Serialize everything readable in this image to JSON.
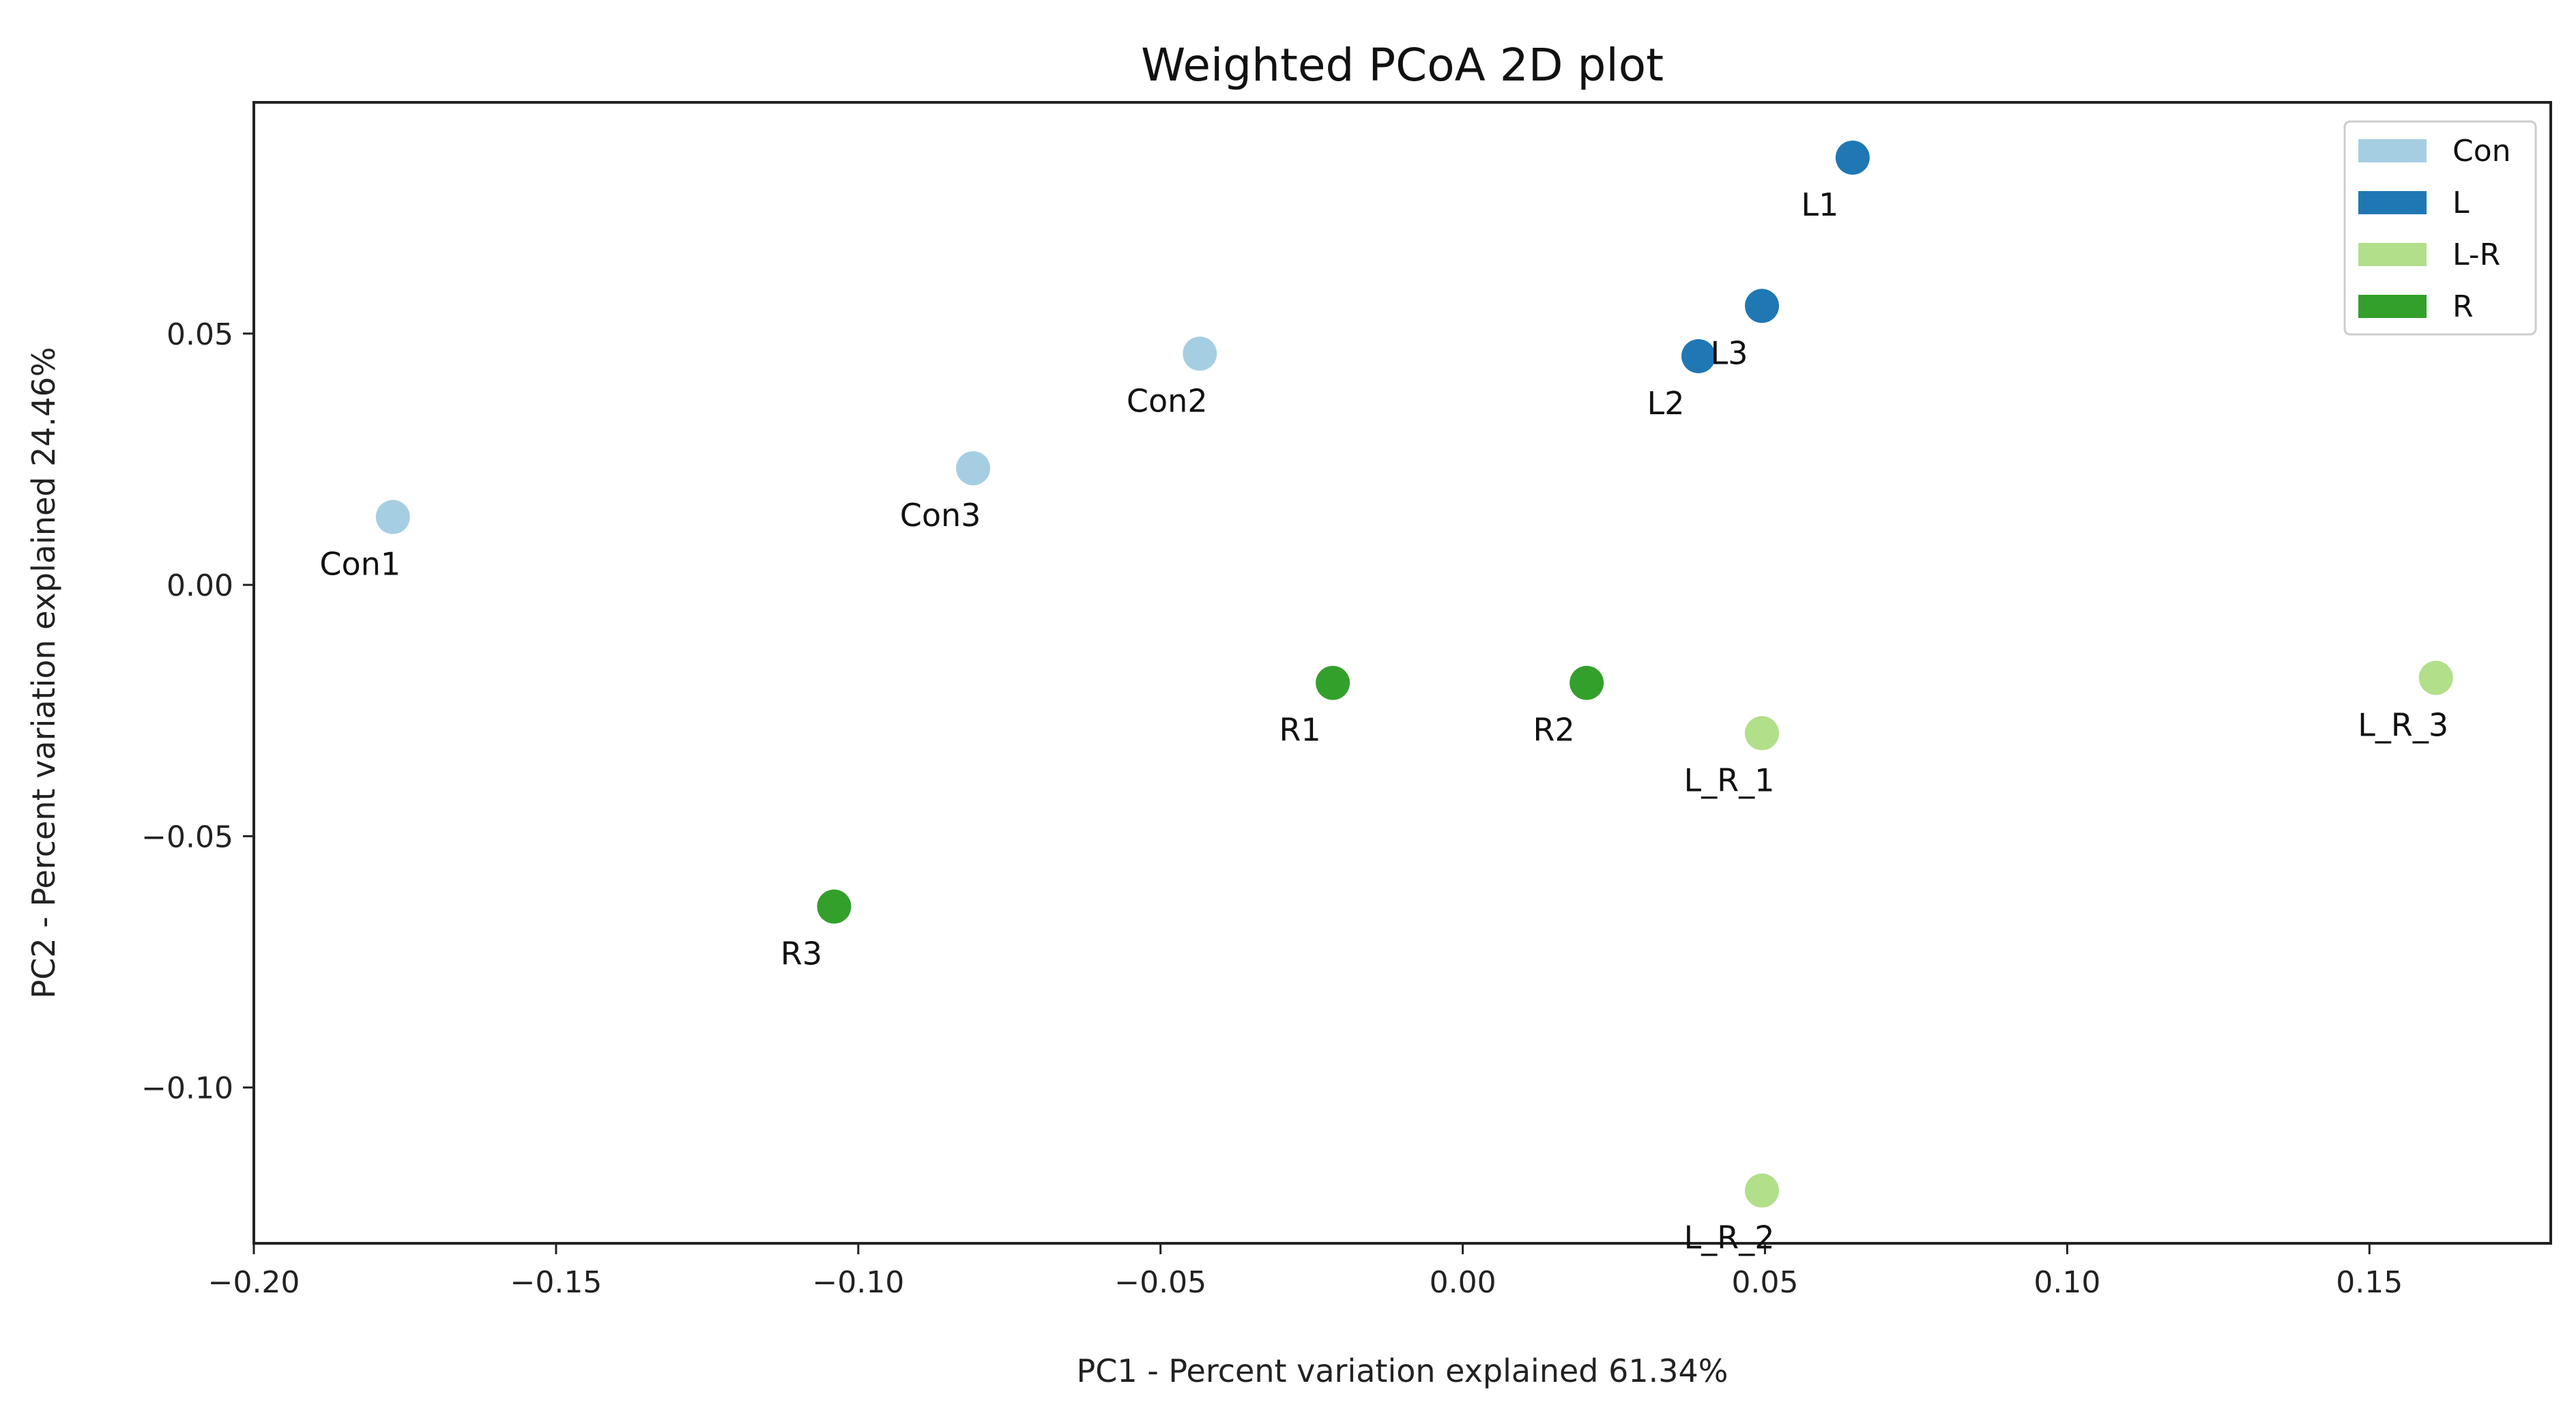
{
  "chart_data": {
    "type": "scatter",
    "title": "Weighted PCoA 2D plot",
    "xlabel": "PC1 - Percent variation explained 61.34%",
    "ylabel": "PC2 - Percent variation explained 24.46%",
    "xlim": [
      -0.2,
      0.18
    ],
    "ylim": [
      -0.131,
      0.096
    ],
    "xticks": [
      -0.2,
      -0.15,
      -0.1,
      -0.05,
      0.0,
      0.05,
      0.1,
      0.15
    ],
    "yticks": [
      -0.1,
      -0.05,
      0.0,
      0.05
    ],
    "xtick_labels": [
      "−0.20",
      "−0.15",
      "−0.10",
      "−0.05",
      "0.00",
      "0.05",
      "0.10",
      "0.15"
    ],
    "ytick_labels": [
      "−0.10",
      "−0.05",
      "0.00",
      "0.05"
    ],
    "legend": {
      "position": "top-right",
      "entries": [
        {
          "name": "Con",
          "color": "#a6cee3"
        },
        {
          "name": "L",
          "color": "#1f78b4"
        },
        {
          "name": "L-R",
          "color": "#b2df8a"
        },
        {
          "name": "R",
          "color": "#33a02c"
        }
      ]
    },
    "points": [
      {
        "label": "Con1",
        "group": "Con",
        "x": -0.177,
        "y": 0.0135
      },
      {
        "label": "Con2",
        "group": "Con",
        "x": -0.0435,
        "y": 0.046
      },
      {
        "label": "Con3",
        "group": "Con",
        "x": -0.081,
        "y": 0.0232
      },
      {
        "label": "L1",
        "group": "L",
        "x": 0.0645,
        "y": 0.085
      },
      {
        "label": "L2",
        "group": "L",
        "x": 0.039,
        "y": 0.0455
      },
      {
        "label": "L3",
        "group": "L",
        "x": 0.0495,
        "y": 0.0555
      },
      {
        "label": "L_R_1",
        "group": "L-R",
        "x": 0.0495,
        "y": -0.0295
      },
      {
        "label": "L_R_2",
        "group": "L-R",
        "x": 0.0495,
        "y": -0.1205
      },
      {
        "label": "L_R_3",
        "group": "L-R",
        "x": 0.161,
        "y": -0.0185
      },
      {
        "label": "R1",
        "group": "R",
        "x": -0.0215,
        "y": -0.0195
      },
      {
        "label": "R2",
        "group": "R",
        "x": 0.0205,
        "y": -0.0195
      },
      {
        "label": "R3",
        "group": "R",
        "x": -0.104,
        "y": -0.064
      }
    ]
  }
}
